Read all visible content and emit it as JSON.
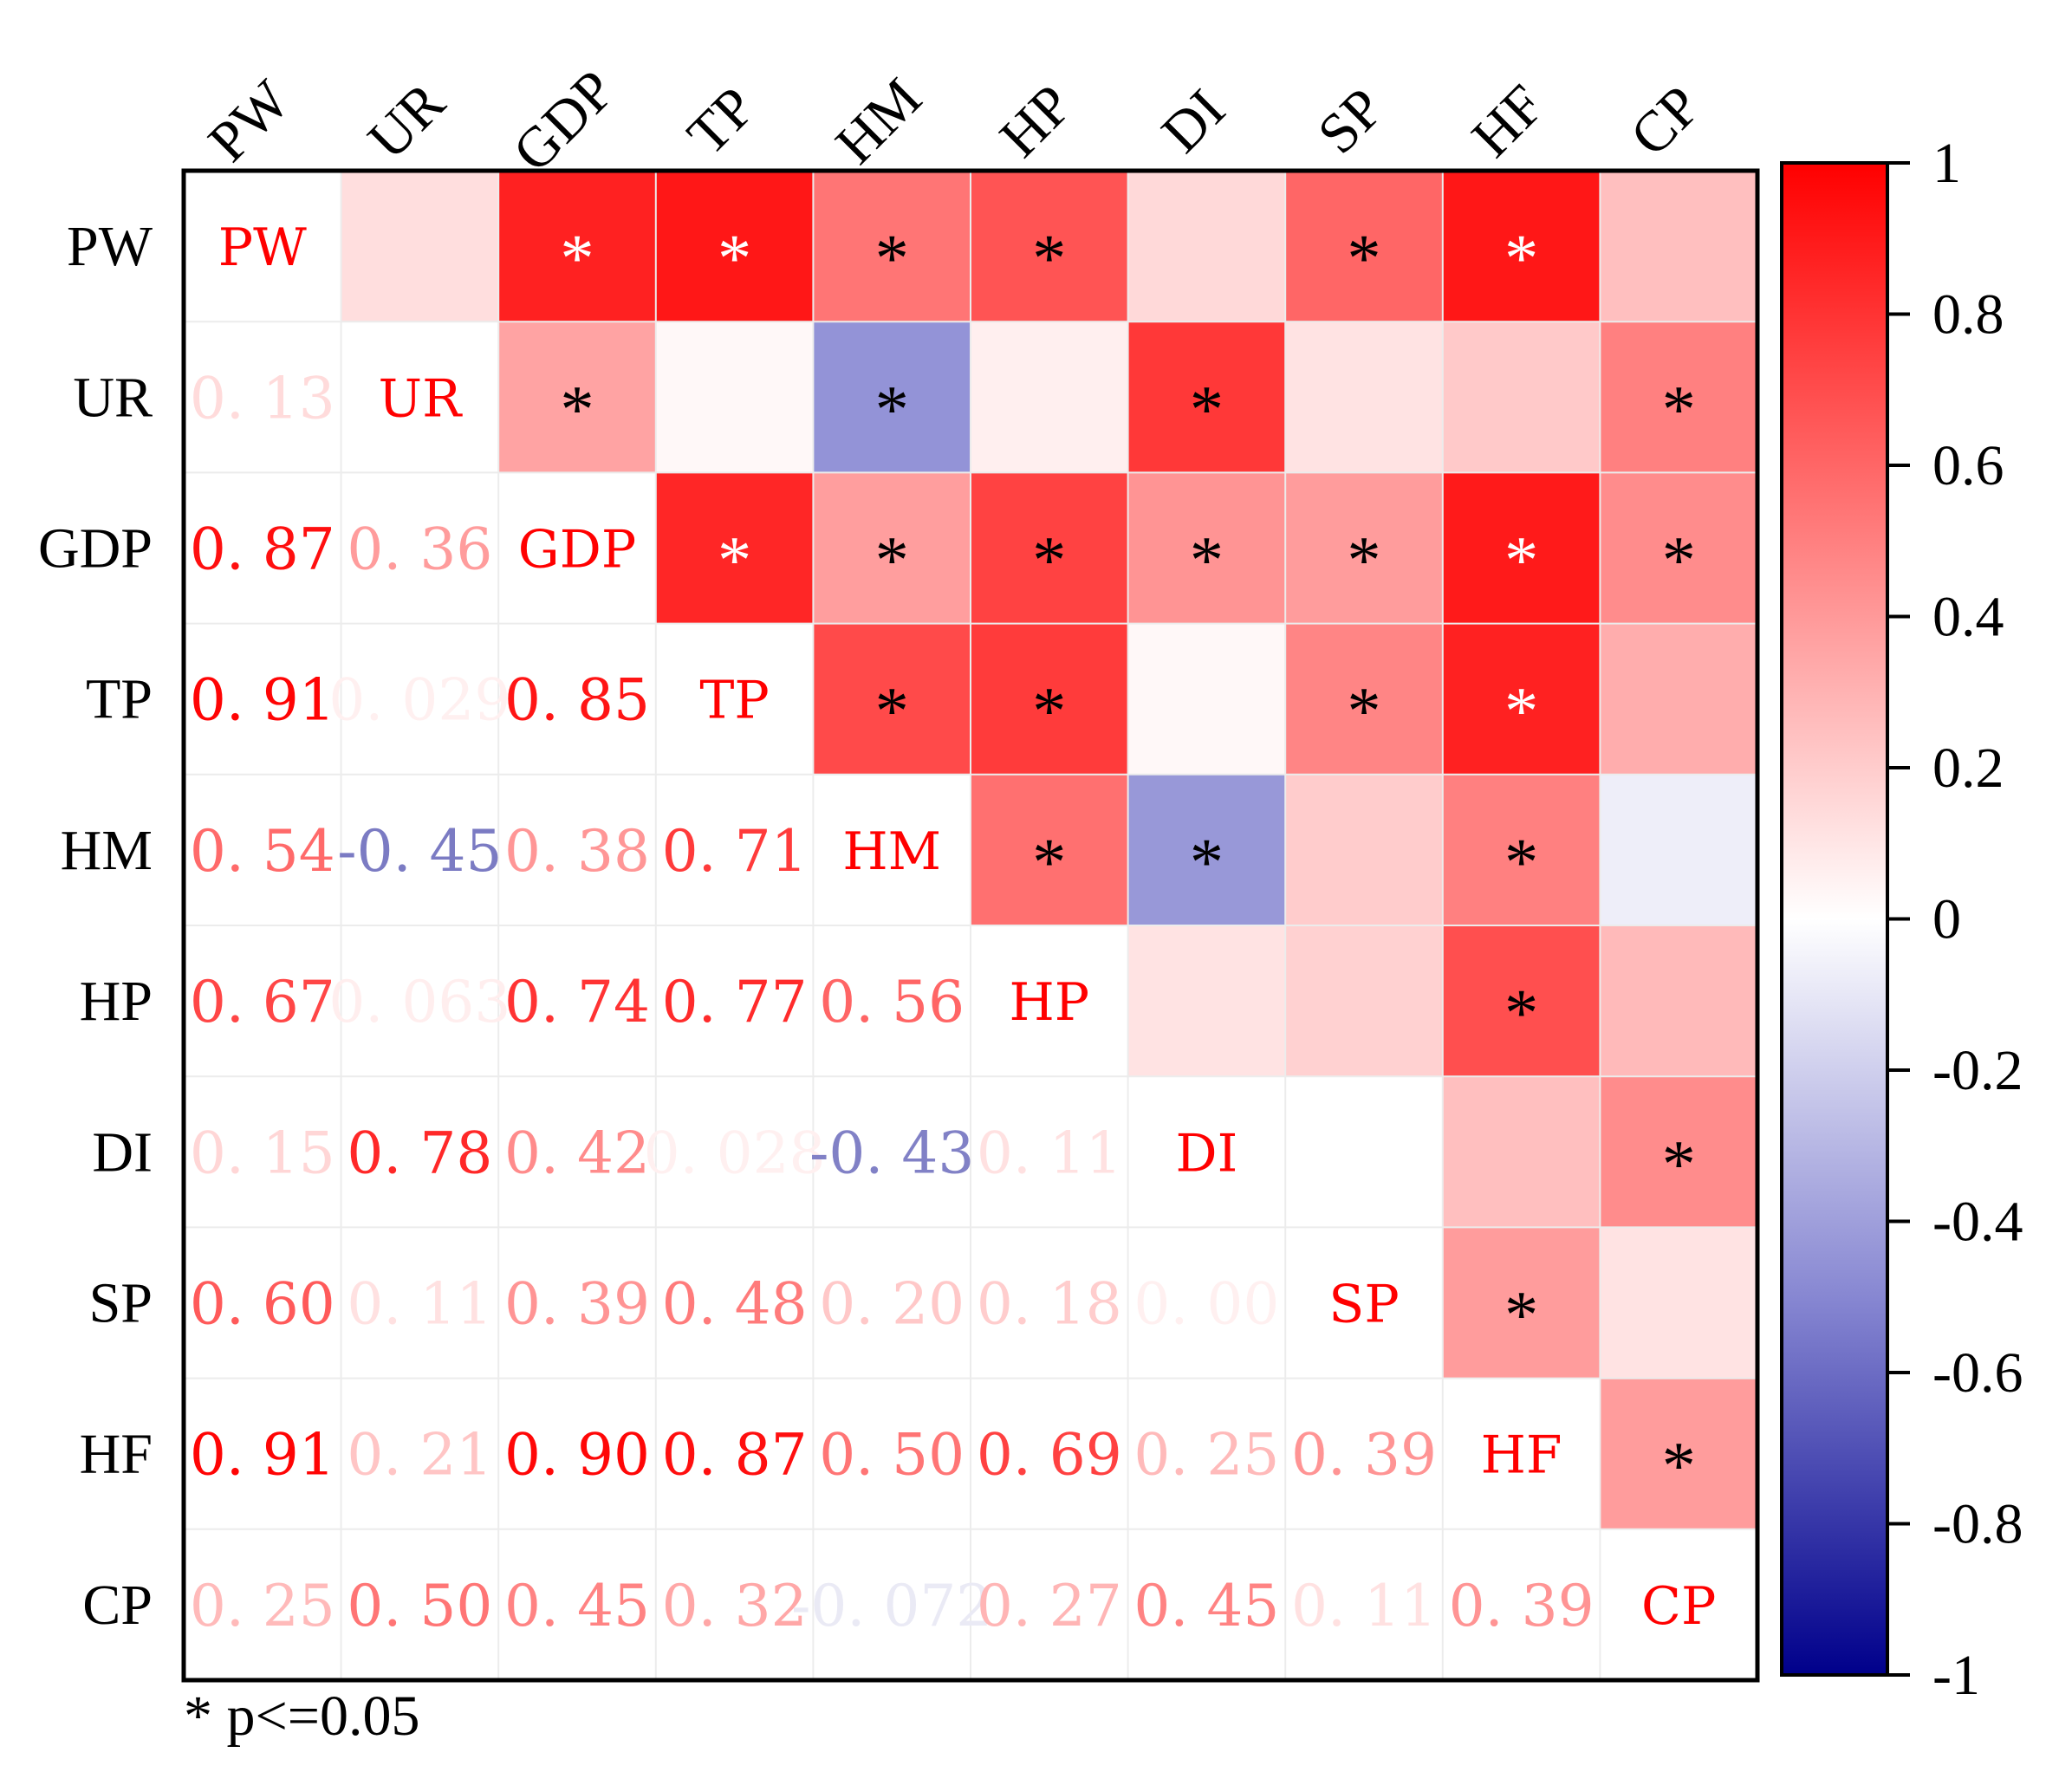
{
  "chart_data": {
    "type": "heatmap",
    "title": "",
    "variables": [
      "PW",
      "UR",
      "GDP",
      "TP",
      "HM",
      "HP",
      "DI",
      "SP",
      "HF",
      "CP"
    ],
    "lower_triangle_labels": [
      [
        null,
        null,
        null,
        null,
        null,
        null,
        null,
        null,
        null,
        null
      ],
      [
        "0.13",
        null,
        null,
        null,
        null,
        null,
        null,
        null,
        null,
        null
      ],
      [
        "0.87",
        "0.36",
        null,
        null,
        null,
        null,
        null,
        null,
        null,
        null
      ],
      [
        "0.91",
        "0.029",
        "0.85",
        null,
        null,
        null,
        null,
        null,
        null,
        null
      ],
      [
        "0.54",
        "-0.45",
        "0.38",
        "0.71",
        null,
        null,
        null,
        null,
        null,
        null
      ],
      [
        "0.67",
        "0.063",
        "0.74",
        "0.77",
        "0.56",
        null,
        null,
        null,
        null,
        null
      ],
      [
        "0.15",
        "0.78",
        "0.42",
        "0.028",
        "-0.43",
        "0.11",
        null,
        null,
        null,
        null
      ],
      [
        "0.60",
        "0.11",
        "0.39",
        "0.48",
        "0.20",
        "0.18",
        "0.00",
        null,
        null,
        null
      ],
      [
        "0.91",
        "0.21",
        "0.90",
        "0.87",
        "0.50",
        "0.69",
        "0.25",
        "0.39",
        null,
        null
      ],
      [
        "0.25",
        "0.50",
        "0.45",
        "0.32",
        "-0.072",
        "0.27",
        "0.45",
        "0.11",
        "0.39",
        null
      ]
    ],
    "correlation_matrix": [
      [
        1,
        0.13,
        0.87,
        0.91,
        0.54,
        0.67,
        0.15,
        0.6,
        0.91,
        0.25
      ],
      [
        0.13,
        1,
        0.36,
        0.029,
        -0.45,
        0.063,
        0.78,
        0.11,
        0.21,
        0.5
      ],
      [
        0.87,
        0.36,
        1,
        0.85,
        0.38,
        0.74,
        0.42,
        0.39,
        0.9,
        0.45
      ],
      [
        0.91,
        0.029,
        0.85,
        1,
        0.71,
        0.77,
        0.028,
        0.48,
        0.87,
        0.32
      ],
      [
        0.54,
        -0.45,
        0.38,
        0.71,
        1,
        0.56,
        -0.43,
        0.2,
        0.5,
        -0.072
      ],
      [
        0.67,
        0.063,
        0.74,
        0.77,
        0.56,
        1,
        0.11,
        0.18,
        0.69,
        0.27
      ],
      [
        0.15,
        0.78,
        0.42,
        0.028,
        -0.43,
        0.11,
        1,
        0.0,
        0.25,
        0.45
      ],
      [
        0.6,
        0.11,
        0.39,
        0.48,
        0.2,
        0.18,
        0.0,
        1,
        0.39,
        0.11
      ],
      [
        0.91,
        0.21,
        0.9,
        0.87,
        0.5,
        0.69,
        0.25,
        0.39,
        1,
        0.39
      ],
      [
        0.25,
        0.5,
        0.45,
        0.32,
        -0.072,
        0.27,
        0.45,
        0.11,
        0.39,
        1
      ]
    ],
    "significant_upper": [
      [
        0,
        2
      ],
      [
        0,
        3
      ],
      [
        0,
        4
      ],
      [
        0,
        5
      ],
      [
        0,
        7
      ],
      [
        0,
        8
      ],
      [
        1,
        2
      ],
      [
        1,
        4
      ],
      [
        1,
        6
      ],
      [
        1,
        9
      ],
      [
        2,
        3
      ],
      [
        2,
        4
      ],
      [
        2,
        5
      ],
      [
        2,
        6
      ],
      [
        2,
        7
      ],
      [
        2,
        8
      ],
      [
        2,
        9
      ],
      [
        3,
        4
      ],
      [
        3,
        5
      ],
      [
        3,
        7
      ],
      [
        3,
        8
      ],
      [
        4,
        5
      ],
      [
        4,
        6
      ],
      [
        4,
        8
      ],
      [
        5,
        8
      ],
      [
        6,
        9
      ],
      [
        7,
        8
      ],
      [
        8,
        9
      ]
    ],
    "significance_marker": "*",
    "colorbar": {
      "min": -1,
      "max": 1,
      "ticks": [
        "1",
        "0.8",
        "0.6",
        "0.4",
        "0.2",
        "0",
        "-0.2",
        "-0.4",
        "-0.6",
        "-0.8",
        "-1"
      ],
      "tick_values": [
        1,
        0.8,
        0.6,
        0.4,
        0.2,
        0,
        -0.2,
        -0.4,
        -0.6,
        -0.8,
        -1
      ],
      "colors": {
        "negative": "#00008b",
        "mid_negative": "#8787d2",
        "zero": "#ffffff",
        "positive": "#ff0000"
      }
    },
    "diagonal_text_color": "#ff0000",
    "note": "* p<=0.05"
  }
}
